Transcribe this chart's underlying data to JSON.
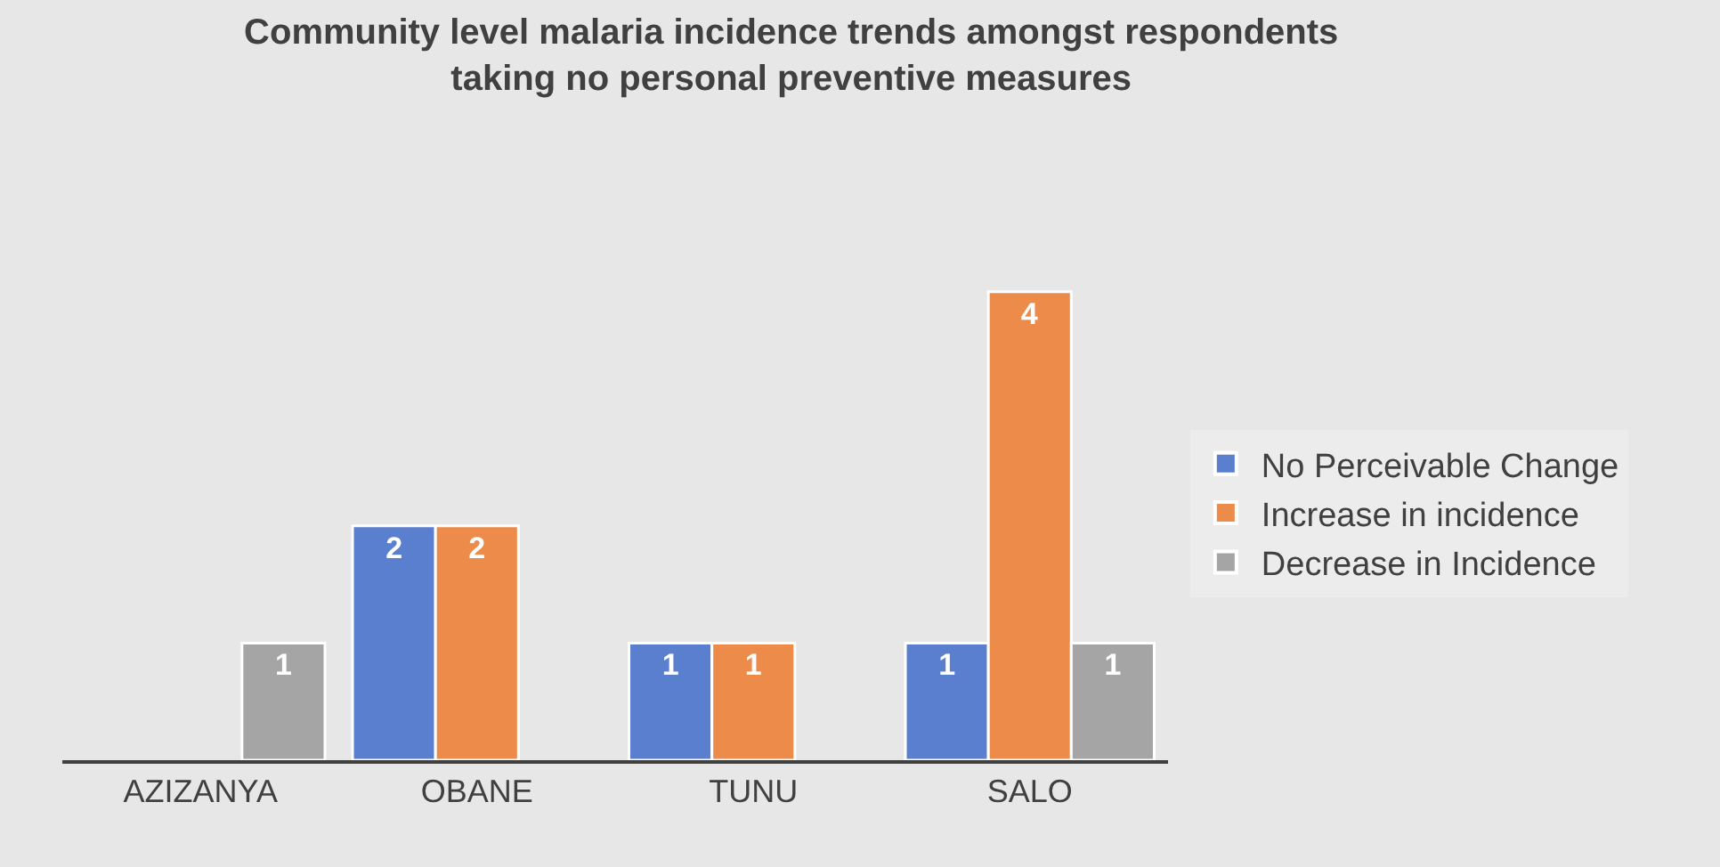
{
  "chart_data": {
    "type": "bar",
    "title": "Community level malaria incidence trends amongst respondents taking no personal preventive measures",
    "categories": [
      "AZIZANYA",
      "OBANE",
      "TUNU",
      "SALO"
    ],
    "series": [
      {
        "name": "No Perceivable Change",
        "color": "#5b7fcf",
        "values": [
          null,
          2,
          1,
          1
        ]
      },
      {
        "name": "Increase in incidence",
        "color": "#ec8b4a",
        "values": [
          null,
          2,
          1,
          4
        ]
      },
      {
        "name": "Decrease in Incidence",
        "color": "#a5a5a5",
        "values": [
          1,
          null,
          null,
          1
        ]
      }
    ],
    "data_labels": true,
    "legend": "right"
  }
}
